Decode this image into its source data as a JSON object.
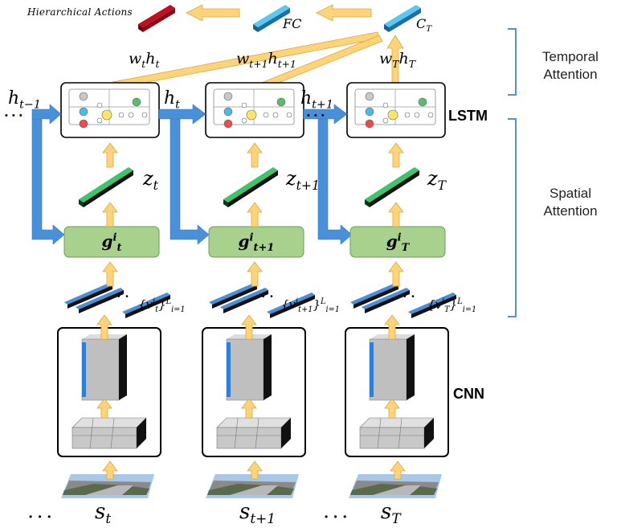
{
  "top": {
    "hierarchical_actions": "Hierarchical Actions",
    "fc": "FC",
    "ct": "C",
    "ct_sub": "T"
  },
  "weights": {
    "w1": "w",
    "w1_sub": "t",
    "h1": "h",
    "h1_sub": "t",
    "w2": "w",
    "w2_sub": "t+1",
    "h2": "h",
    "h2_sub": "t+1",
    "w3": "w",
    "w3_sub": "T",
    "h3": "h",
    "h3_sub": "T"
  },
  "hidden": {
    "h_prev": "h",
    "h_prev_sub": "t−1",
    "h_t": "h",
    "h_t_sub": "t",
    "h_next": "h",
    "h_next_sub": "t+1",
    "dots": "• • •"
  },
  "z": {
    "z1": "z",
    "z1_sub": "t",
    "z2": "z",
    "z2_sub": "t+1",
    "z3": "z",
    "z3_sub": "T"
  },
  "g": {
    "g1": "g",
    "g1_sup": "i",
    "g1_sub": "t",
    "g2": "g",
    "g2_sup": "i",
    "g2_sub": "t+1",
    "g3": "g",
    "g3_sup": "i",
    "g3_sub": "T"
  },
  "v": {
    "v1_open": "{v",
    "v1_sup": "i",
    "v1_sub": "t",
    "v1_close": "}",
    "v1_L": "L",
    "v1_range": "i=1",
    "v2_open": "{v",
    "v2_sup": "i",
    "v2_sub": "t+1",
    "v2_close": "}",
    "v2_L": "L",
    "v2_range": "i=1",
    "v3_open": "{v",
    "v3_sup": "i",
    "v3_sub": "T",
    "v3_close": "}",
    "v3_L": "L",
    "v3_range": "i=1",
    "dots": "• •"
  },
  "s": {
    "s1": "s",
    "s1_sub": "t",
    "s2": "s",
    "s2_sub": "t+1",
    "s3": "s",
    "s3_sub": "T",
    "dots": "• • •"
  },
  "labels": {
    "lstm": "LSTM",
    "cnn": "CNN",
    "temporal": "Temporal",
    "temporal2": "Attention",
    "spatial": "Spatial",
    "spatial2": "Attention"
  },
  "colors": {
    "blue": "#4a90d9",
    "green_box": "#a8d18d",
    "arrow": "#ffd37a",
    "bracket": "#5b8fd1"
  }
}
